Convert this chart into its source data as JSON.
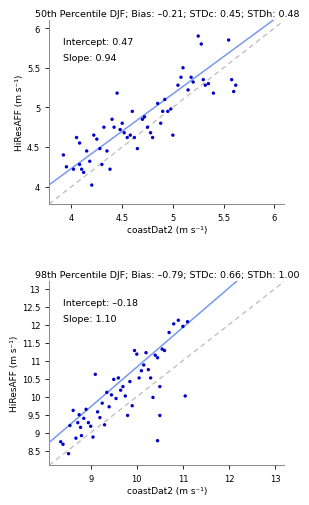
{
  "plot1": {
    "title": "50th Percentile DJF; Bias: –0.21; STDc: 0.45; STDh: 0.48",
    "xlabel": "coastDat2 (m s⁻¹)",
    "ylabel": "HiResAFF (m s⁻¹)",
    "intercept": 0.47,
    "slope": 0.94,
    "intercept_label": "Intercept: 0.47",
    "slope_label": "Slope: 0.94",
    "xlim": [
      3.78,
      6.1
    ],
    "ylim": [
      3.78,
      6.1
    ],
    "xticks": [
      4,
      4.5,
      5,
      5.5,
      6
    ],
    "yticks": [
      4,
      4.5,
      5,
      5.5,
      6
    ],
    "scatter_x": [
      3.92,
      3.95,
      4.02,
      4.05,
      4.08,
      4.08,
      4.1,
      4.12,
      4.15,
      4.18,
      4.2,
      4.22,
      4.25,
      4.28,
      4.3,
      4.32,
      4.35,
      4.38,
      4.4,
      4.42,
      4.45,
      4.48,
      4.5,
      4.52,
      4.55,
      4.58,
      4.6,
      4.62,
      4.65,
      4.7,
      4.72,
      4.75,
      4.78,
      4.8,
      4.85,
      4.88,
      4.9,
      4.92,
      4.95,
      4.98,
      5.0,
      5.05,
      5.08,
      5.1,
      5.15,
      5.18,
      5.2,
      5.25,
      5.28,
      5.3,
      5.32,
      5.35,
      5.4,
      5.55,
      5.58,
      5.6,
      5.62
    ],
    "scatter_y": [
      4.4,
      4.25,
      4.22,
      4.62,
      4.55,
      4.28,
      4.22,
      4.18,
      4.45,
      4.32,
      4.02,
      4.65,
      4.6,
      4.48,
      4.28,
      4.75,
      4.45,
      4.22,
      4.85,
      4.75,
      5.18,
      4.72,
      4.8,
      4.68,
      4.62,
      4.65,
      4.95,
      4.62,
      4.48,
      4.85,
      4.88,
      4.75,
      4.68,
      4.62,
      5.05,
      4.8,
      4.95,
      5.1,
      4.95,
      4.98,
      4.65,
      5.28,
      5.38,
      5.5,
      5.22,
      5.38,
      5.32,
      5.9,
      5.8,
      5.35,
      5.28,
      5.3,
      5.18,
      5.85,
      5.35,
      5.2,
      5.28
    ]
  },
  "plot2": {
    "title": "98th Percentile DJF; Bias: –0.79; STDc: 0.66; STDh: 1.00",
    "xlabel": "coastDat2 (m s⁻¹)",
    "ylabel": "HiResAFF (m s⁻¹)",
    "intercept": -0.18,
    "slope": 1.1,
    "intercept_label": "Intercept: –0.18",
    "slope_label": "Slope: 1.10",
    "xlim": [
      8.1,
      13.2
    ],
    "ylim": [
      8.1,
      13.2
    ],
    "xticks": [
      9,
      10,
      11,
      12,
      13
    ],
    "yticks": [
      8.5,
      9,
      9.5,
      10,
      10.5,
      11,
      11.5,
      12,
      12.5,
      13
    ],
    "scatter_x": [
      8.35,
      8.4,
      8.52,
      8.55,
      8.62,
      8.68,
      8.72,
      8.75,
      8.78,
      8.8,
      8.85,
      8.9,
      8.95,
      9.0,
      9.05,
      9.1,
      9.15,
      9.2,
      9.25,
      9.3,
      9.35,
      9.4,
      9.45,
      9.5,
      9.55,
      9.6,
      9.65,
      9.7,
      9.75,
      9.8,
      9.85,
      9.9,
      9.95,
      10.0,
      10.05,
      10.1,
      10.15,
      10.2,
      10.25,
      10.3,
      10.35,
      10.4,
      10.45,
      10.5,
      10.55,
      10.6,
      10.7,
      10.8,
      10.9,
      11.0,
      11.05,
      11.1,
      10.45,
      10.5
    ],
    "scatter_y": [
      8.75,
      8.68,
      8.42,
      9.2,
      9.62,
      8.85,
      9.28,
      9.5,
      9.15,
      8.92,
      9.4,
      9.65,
      9.28,
      9.18,
      8.88,
      10.62,
      9.58,
      9.42,
      9.82,
      9.22,
      10.12,
      9.72,
      10.05,
      10.48,
      9.95,
      10.52,
      10.18,
      10.28,
      10.02,
      9.48,
      10.42,
      9.75,
      11.28,
      11.18,
      10.52,
      10.72,
      10.88,
      11.22,
      10.75,
      10.52,
      9.98,
      11.15,
      11.08,
      10.28,
      11.32,
      11.28,
      11.78,
      12.02,
      12.12,
      11.95,
      10.02,
      12.08,
      8.78,
      9.48
    ]
  },
  "scatter_color": "#0000cc",
  "regression_color": "#7799ee",
  "onetoone_color": "#bbbbbb",
  "title_fontsize": 6.8,
  "label_fontsize": 6.5,
  "tick_fontsize": 6.0,
  "annotation_fontsize": 6.8
}
